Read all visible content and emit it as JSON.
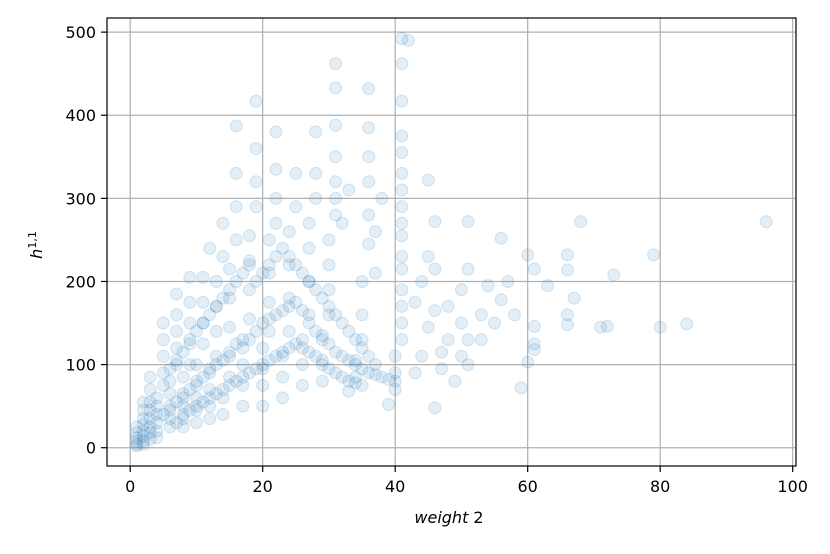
{
  "chart_data": {
    "type": "scatter",
    "title": "",
    "xlabel_italic": "weight",
    "xlabel_rest": " 2",
    "ylabel_base": "h",
    "ylabel_sup": "1,1",
    "xlim": [
      -3.5,
      100.5
    ],
    "ylim": [
      -22,
      517
    ],
    "xticks": [
      0,
      20,
      40,
      60,
      80,
      100
    ],
    "yticks": [
      0,
      100,
      200,
      300,
      400,
      500
    ],
    "grid": true,
    "marker_color": "#1f77b4",
    "marker_alpha": 0.12,
    "points": [
      [
        96,
        272
      ],
      [
        84,
        149
      ],
      [
        80,
        145
      ],
      [
        79,
        232
      ],
      [
        73,
        208
      ],
      [
        72,
        146
      ],
      [
        71,
        145
      ],
      [
        68,
        272
      ],
      [
        67,
        180
      ],
      [
        66,
        232
      ],
      [
        66,
        214
      ],
      [
        66,
        160
      ],
      [
        66,
        148
      ],
      [
        63,
        195
      ],
      [
        61,
        215
      ],
      [
        61,
        146
      ],
      [
        61,
        118
      ],
      [
        61,
        125
      ],
      [
        60,
        232
      ],
      [
        60,
        103
      ],
      [
        59,
        72
      ],
      [
        58,
        160
      ],
      [
        57,
        200
      ],
      [
        56,
        252
      ],
      [
        56,
        178
      ],
      [
        55,
        150
      ],
      [
        54,
        195
      ],
      [
        53,
        160
      ],
      [
        53,
        130
      ],
      [
        51,
        272
      ],
      [
        51,
        215
      ],
      [
        51,
        130
      ],
      [
        51,
        100
      ],
      [
        50,
        190
      ],
      [
        50,
        150
      ],
      [
        50,
        110
      ],
      [
        49,
        80
      ],
      [
        48,
        170
      ],
      [
        48,
        130
      ],
      [
        47,
        115
      ],
      [
        47,
        95
      ],
      [
        46,
        272
      ],
      [
        46,
        215
      ],
      [
        46,
        165
      ],
      [
        46,
        48
      ],
      [
        45,
        322
      ],
      [
        45,
        230
      ],
      [
        45,
        145
      ],
      [
        44,
        200
      ],
      [
        44,
        110
      ],
      [
        43,
        175
      ],
      [
        43,
        90
      ],
      [
        42,
        490
      ],
      [
        41,
        492
      ],
      [
        41,
        462
      ],
      [
        41,
        417
      ],
      [
        41,
        375
      ],
      [
        41,
        355
      ],
      [
        41,
        330
      ],
      [
        41,
        310
      ],
      [
        41,
        290
      ],
      [
        41,
        270
      ],
      [
        41,
        255
      ],
      [
        41,
        230
      ],
      [
        41,
        215
      ],
      [
        41,
        190
      ],
      [
        41,
        170
      ],
      [
        41,
        150
      ],
      [
        41,
        130
      ],
      [
        40,
        110
      ],
      [
        40,
        90
      ],
      [
        40,
        70
      ],
      [
        39,
        52
      ],
      [
        38,
        300
      ],
      [
        37,
        260
      ],
      [
        37,
        210
      ],
      [
        36,
        432
      ],
      [
        36,
        385
      ],
      [
        36,
        350
      ],
      [
        36,
        320
      ],
      [
        36,
        280
      ],
      [
        36,
        245
      ],
      [
        35,
        200
      ],
      [
        35,
        160
      ],
      [
        35,
        130
      ],
      [
        34,
        105
      ],
      [
        34,
        85
      ],
      [
        33,
        68
      ],
      [
        33,
        310
      ],
      [
        32,
        270
      ],
      [
        31,
        462
      ],
      [
        31,
        433
      ],
      [
        31,
        388
      ],
      [
        31,
        350
      ],
      [
        31,
        320
      ],
      [
        31,
        300
      ],
      [
        31,
        280
      ],
      [
        30,
        250
      ],
      [
        30,
        220
      ],
      [
        30,
        190
      ],
      [
        30,
        160
      ],
      [
        29,
        130
      ],
      [
        29,
        105
      ],
      [
        29,
        80
      ],
      [
        28,
        380
      ],
      [
        28,
        330
      ],
      [
        28,
        300
      ],
      [
        27,
        270
      ],
      [
        27,
        240
      ],
      [
        27,
        200
      ],
      [
        27,
        160
      ],
      [
        26,
        130
      ],
      [
        26,
        100
      ],
      [
        26,
        75
      ],
      [
        25,
        330
      ],
      [
        25,
        290
      ],
      [
        24,
        260
      ],
      [
        24,
        220
      ],
      [
        24,
        180
      ],
      [
        24,
        140
      ],
      [
        23,
        110
      ],
      [
        23,
        85
      ],
      [
        23,
        60
      ],
      [
        22,
        380
      ],
      [
        22,
        335
      ],
      [
        22,
        300
      ],
      [
        22,
        270
      ],
      [
        21,
        250
      ],
      [
        21,
        210
      ],
      [
        21,
        175
      ],
      [
        21,
        140
      ],
      [
        20,
        120
      ],
      [
        20,
        95
      ],
      [
        20,
        75
      ],
      [
        20,
        50
      ],
      [
        19,
        417
      ],
      [
        19,
        360
      ],
      [
        19,
        320
      ],
      [
        19,
        290
      ],
      [
        18,
        255
      ],
      [
        18,
        225
      ],
      [
        18,
        190
      ],
      [
        18,
        155
      ],
      [
        17,
        130
      ],
      [
        17,
        100
      ],
      [
        17,
        75
      ],
      [
        17,
        50
      ],
      [
        16,
        387
      ],
      [
        16,
        330
      ],
      [
        16,
        290
      ],
      [
        16,
        250
      ],
      [
        15,
        215
      ],
      [
        15,
        180
      ],
      [
        15,
        145
      ],
      [
        15,
        110
      ],
      [
        15,
        85
      ],
      [
        14,
        60
      ],
      [
        14,
        40
      ],
      [
        14,
        270
      ],
      [
        14,
        230
      ],
      [
        13,
        200
      ],
      [
        13,
        170
      ],
      [
        13,
        140
      ],
      [
        13,
        110
      ],
      [
        12,
        90
      ],
      [
        12,
        70
      ],
      [
        12,
        50
      ],
      [
        12,
        35
      ],
      [
        12,
        240
      ],
      [
        11,
        205
      ],
      [
        11,
        175
      ],
      [
        11,
        150
      ],
      [
        11,
        125
      ],
      [
        10,
        100
      ],
      [
        10,
        80
      ],
      [
        10,
        60
      ],
      [
        10,
        45
      ],
      [
        10,
        30
      ],
      [
        9,
        205
      ],
      [
        9,
        175
      ],
      [
        9,
        150
      ],
      [
        9,
        125
      ],
      [
        9,
        100
      ],
      [
        8,
        85
      ],
      [
        8,
        65
      ],
      [
        8,
        50
      ],
      [
        8,
        35
      ],
      [
        8,
        25
      ],
      [
        7,
        185
      ],
      [
        7,
        160
      ],
      [
        7,
        140
      ],
      [
        7,
        120
      ],
      [
        7,
        100
      ],
      [
        6,
        80
      ],
      [
        6,
        65
      ],
      [
        6,
        50
      ],
      [
        6,
        35
      ],
      [
        6,
        25
      ],
      [
        5,
        150
      ],
      [
        5,
        130
      ],
      [
        5,
        110
      ],
      [
        5,
        90
      ],
      [
        5,
        75
      ],
      [
        4,
        60
      ],
      [
        4,
        50
      ],
      [
        4,
        40
      ],
      [
        4,
        30
      ],
      [
        4,
        20
      ],
      [
        4,
        12
      ],
      [
        3,
        85
      ],
      [
        3,
        70
      ],
      [
        3,
        55
      ],
      [
        3,
        45
      ],
      [
        3,
        35
      ],
      [
        3,
        25
      ],
      [
        3,
        18
      ],
      [
        3,
        10
      ],
      [
        2,
        55
      ],
      [
        2,
        45
      ],
      [
        2,
        35
      ],
      [
        2,
        28
      ],
      [
        2,
        20
      ],
      [
        2,
        14
      ],
      [
        2,
        8
      ],
      [
        2,
        4
      ],
      [
        1,
        25
      ],
      [
        1,
        18
      ],
      [
        1,
        12
      ],
      [
        1,
        8
      ],
      [
        1,
        4
      ],
      [
        1,
        2
      ],
      [
        5,
        40
      ],
      [
        6,
        45
      ],
      [
        7,
        55
      ],
      [
        8,
        60
      ],
      [
        9,
        70
      ],
      [
        10,
        75
      ],
      [
        11,
        85
      ],
      [
        12,
        95
      ],
      [
        13,
        100
      ],
      [
        14,
        105
      ],
      [
        15,
        115
      ],
      [
        16,
        125
      ],
      [
        17,
        120
      ],
      [
        18,
        130
      ],
      [
        19,
        140
      ],
      [
        20,
        150
      ],
      [
        21,
        155
      ],
      [
        22,
        160
      ],
      [
        23,
        165
      ],
      [
        24,
        170
      ],
      [
        25,
        175
      ],
      [
        26,
        165
      ],
      [
        27,
        150
      ],
      [
        28,
        140
      ],
      [
        29,
        135
      ],
      [
        30,
        125
      ],
      [
        31,
        115
      ],
      [
        32,
        110
      ],
      [
        33,
        105
      ],
      [
        34,
        100
      ],
      [
        35,
        95
      ],
      [
        36,
        90
      ],
      [
        37,
        88
      ],
      [
        38,
        85
      ],
      [
        39,
        82
      ],
      [
        40,
        80
      ],
      [
        7,
        30
      ],
      [
        8,
        40
      ],
      [
        9,
        45
      ],
      [
        10,
        50
      ],
      [
        11,
        55
      ],
      [
        12,
        60
      ],
      [
        13,
        65
      ],
      [
        14,
        70
      ],
      [
        15,
        75
      ],
      [
        16,
        80
      ],
      [
        17,
        85
      ],
      [
        18,
        90
      ],
      [
        19,
        95
      ],
      [
        20,
        100
      ],
      [
        21,
        105
      ],
      [
        22,
        110
      ],
      [
        23,
        115
      ],
      [
        24,
        120
      ],
      [
        25,
        125
      ],
      [
        26,
        120
      ],
      [
        27,
        115
      ],
      [
        28,
        110
      ],
      [
        29,
        100
      ],
      [
        30,
        95
      ],
      [
        31,
        90
      ],
      [
        32,
        85
      ],
      [
        33,
        80
      ],
      [
        34,
        78
      ],
      [
        35,
        75
      ],
      [
        6,
        95
      ],
      [
        7,
        105
      ],
      [
        8,
        115
      ],
      [
        9,
        130
      ],
      [
        10,
        140
      ],
      [
        11,
        150
      ],
      [
        12,
        160
      ],
      [
        13,
        170
      ],
      [
        14,
        180
      ],
      [
        15,
        190
      ],
      [
        16,
        200
      ],
      [
        17,
        210
      ],
      [
        18,
        220
      ],
      [
        19,
        200
      ],
      [
        20,
        210
      ],
      [
        21,
        220
      ],
      [
        22,
        230
      ],
      [
        23,
        240
      ],
      [
        24,
        230
      ],
      [
        25,
        220
      ],
      [
        26,
        210
      ],
      [
        27,
        200
      ],
      [
        28,
        190
      ],
      [
        29,
        180
      ],
      [
        30,
        170
      ],
      [
        31,
        160
      ],
      [
        32,
        150
      ],
      [
        33,
        140
      ],
      [
        34,
        130
      ],
      [
        35,
        120
      ],
      [
        36,
        110
      ],
      [
        37,
        100
      ]
    ]
  }
}
